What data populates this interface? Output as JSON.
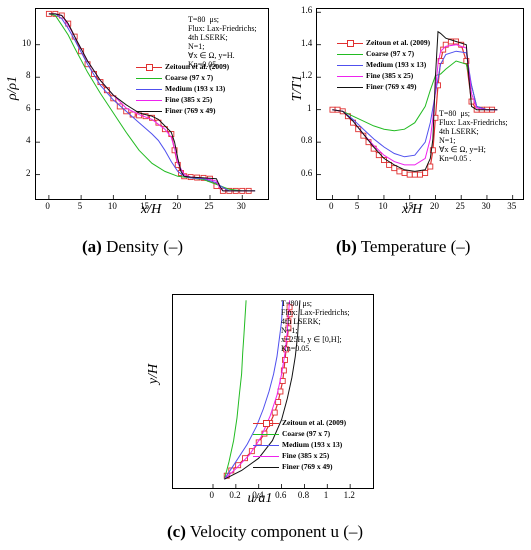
{
  "series_styles": [
    {
      "key": "zeitoun",
      "name": "Zeitoun et al. (2009)",
      "color": "#e03030",
      "marker": "square"
    },
    {
      "key": "coarse",
      "name": "Coarse (97 x 7)",
      "color": "#22bb22"
    },
    {
      "key": "medium",
      "name": "Medium (193 x 13)",
      "color": "#5050ee"
    },
    {
      "key": "fine",
      "name": "Fine (385 x 25)",
      "color": "#ee22ee"
    },
    {
      "key": "finer",
      "name": "Finer (769 x 49)",
      "color": "#111111"
    }
  ],
  "chart_data": [
    {
      "type": "line",
      "caption_label": "(a)",
      "caption_text": " Density (–)",
      "xlabel": "x/H",
      "ylabel": "ρ/ρ1",
      "xlim": [
        -2,
        34
      ],
      "ylim": [
        0.5,
        12.2
      ],
      "xticks": [
        0,
        5,
        10,
        15,
        20,
        25,
        30
      ],
      "yticks": [
        2,
        4,
        6,
        8,
        10
      ],
      "info": "T=80  μs;\nFlux: Lax-Friedrichs;\n4th LSERK;\nN=1;\n∀x ∈ Ω, y=H.\nKn=0.05",
      "series": [
        {
          "key": "zeitoun",
          "x": [
            0,
            1,
            2,
            3,
            4,
            5,
            6,
            7,
            8,
            9,
            10,
            11,
            12,
            13,
            14,
            15,
            16,
            17,
            18,
            19,
            19.5,
            20,
            20.5,
            21,
            22,
            23,
            24,
            25,
            26,
            27,
            28,
            29,
            30,
            31
          ],
          "y": [
            11.9,
            11.9,
            11.8,
            11.3,
            10.5,
            9.6,
            8.8,
            8.2,
            7.7,
            7.2,
            6.7,
            6.2,
            5.9,
            5.7,
            5.65,
            5.6,
            5.5,
            5.2,
            4.8,
            4.5,
            3.5,
            2.6,
            2.1,
            1.9,
            1.85,
            1.82,
            1.8,
            1.75,
            1.3,
            1.0,
            1.0,
            1.0,
            1.0,
            1.0
          ]
        },
        {
          "key": "coarse",
          "x": [
            0,
            1,
            2,
            3,
            4,
            6,
            8,
            10,
            12,
            14,
            16,
            18,
            20,
            22,
            24,
            26,
            28,
            30,
            32
          ],
          "y": [
            11.9,
            11.8,
            11.2,
            10.6,
            9.8,
            8.3,
            7.0,
            5.8,
            4.6,
            3.5,
            2.7,
            2.2,
            1.9,
            1.8,
            1.7,
            1.4,
            1.1,
            1.0,
            1.0
          ]
        },
        {
          "key": "medium",
          "x": [
            0,
            1,
            2,
            3,
            4,
            6,
            8,
            10,
            12,
            14,
            16,
            17,
            18,
            19,
            20,
            21,
            22,
            24,
            26,
            27,
            28,
            30,
            32
          ],
          "y": [
            11.9,
            11.9,
            11.6,
            11.0,
            10.3,
            8.8,
            7.5,
            6.6,
            5.9,
            5.2,
            4.5,
            4.1,
            3.5,
            2.8,
            2.2,
            1.9,
            1.8,
            1.75,
            1.5,
            1.2,
            1.0,
            1.0,
            1.0
          ]
        },
        {
          "key": "fine",
          "x": [
            0,
            1,
            2,
            3,
            4,
            6,
            8,
            10,
            12,
            14,
            16,
            17,
            18,
            19,
            19.5,
            20,
            21,
            22,
            24,
            26,
            26.5,
            27,
            28,
            30,
            32
          ],
          "y": [
            11.9,
            11.9,
            11.8,
            11.2,
            10.5,
            9.0,
            7.8,
            6.9,
            6.1,
            5.7,
            5.4,
            5.1,
            4.8,
            4.3,
            3.6,
            2.7,
            2.0,
            1.85,
            1.8,
            1.6,
            1.2,
            1.0,
            1.0,
            1.0,
            1.0
          ]
        },
        {
          "key": "finer",
          "x": [
            0,
            1,
            2,
            3,
            4,
            6,
            8,
            10,
            12,
            14,
            15,
            16,
            17,
            18,
            19,
            19.5,
            20,
            20.5,
            21,
            22,
            24,
            26,
            26.5,
            27,
            28,
            30,
            32
          ],
          "y": [
            11.9,
            11.9,
            11.8,
            11.3,
            10.5,
            9.0,
            7.8,
            6.9,
            6.3,
            5.8,
            5.7,
            5.6,
            5.4,
            5.0,
            4.6,
            4.0,
            3.0,
            2.2,
            1.9,
            1.85,
            1.8,
            1.75,
            1.3,
            1.0,
            1.0,
            1.0,
            1.0
          ]
        }
      ]
    },
    {
      "type": "line",
      "caption_label": "(b)",
      "caption_text": " Temperature (–)",
      "xlabel": "x/H",
      "ylabel": "T/T1",
      "xlim": [
        -3,
        37
      ],
      "ylim": [
        0.45,
        1.62
      ],
      "xticks": [
        0,
        5,
        10,
        15,
        20,
        25,
        30,
        35
      ],
      "yticks": [
        0.6,
        0.8,
        1,
        1.2,
        1.4,
        1.6
      ],
      "info": "T=80  μs;\nFlux: Lax-Friedrichs;\n4th LSERK;\nN=1;\n∀x ∈ Ω, y=H;\nKn=0.05 .",
      "series": [
        {
          "key": "zeitoun",
          "x": [
            0,
            1,
            2,
            3,
            4,
            5,
            6,
            7,
            8,
            9,
            10,
            11,
            12,
            13,
            14,
            15,
            16,
            17,
            18,
            19,
            19.5,
            20,
            20.5,
            21,
            21.5,
            22,
            23,
            24,
            25,
            26,
            27,
            28,
            29,
            30,
            31
          ],
          "y": [
            1.0,
            1.0,
            0.99,
            0.96,
            0.92,
            0.88,
            0.84,
            0.8,
            0.76,
            0.72,
            0.69,
            0.66,
            0.64,
            0.62,
            0.61,
            0.6,
            0.6,
            0.6,
            0.61,
            0.65,
            0.75,
            0.95,
            1.15,
            1.3,
            1.37,
            1.4,
            1.42,
            1.42,
            1.4,
            1.3,
            1.05,
            1.0,
            1.0,
            1.0,
            1.0
          ]
        },
        {
          "key": "coarse",
          "x": [
            0,
            2,
            4,
            6,
            8,
            10,
            12,
            14,
            16,
            18,
            19,
            20,
            21,
            22,
            24,
            26,
            27,
            28,
            30,
            32
          ],
          "y": [
            1.0,
            0.99,
            0.96,
            0.93,
            0.9,
            0.88,
            0.87,
            0.88,
            0.92,
            1.02,
            1.12,
            1.21,
            1.22,
            1.25,
            1.3,
            1.28,
            1.15,
            1.02,
            1.0,
            1.0
          ]
        },
        {
          "key": "medium",
          "x": [
            0,
            2,
            4,
            6,
            8,
            10,
            12,
            14,
            16,
            18,
            19,
            20,
            21,
            22,
            24,
            26,
            27,
            28,
            30,
            32
          ],
          "y": [
            1.0,
            0.99,
            0.94,
            0.88,
            0.82,
            0.77,
            0.73,
            0.71,
            0.72,
            0.8,
            0.92,
            1.1,
            1.28,
            1.34,
            1.36,
            1.35,
            1.15,
            1.02,
            1.0,
            1.0
          ]
        },
        {
          "key": "fine",
          "x": [
            0,
            2,
            4,
            6,
            8,
            10,
            12,
            14,
            16,
            18,
            19,
            19.5,
            20,
            20.5,
            21,
            22,
            24,
            26,
            27,
            28,
            30,
            32
          ],
          "y": [
            1.0,
            0.99,
            0.93,
            0.85,
            0.78,
            0.72,
            0.68,
            0.66,
            0.66,
            0.7,
            0.82,
            0.95,
            1.12,
            1.28,
            1.36,
            1.39,
            1.4,
            1.38,
            1.1,
            1.01,
            1.0,
            1.0
          ]
        },
        {
          "key": "finer",
          "x": [
            0,
            2,
            4,
            6,
            8,
            10,
            12,
            14,
            16,
            18,
            19,
            19.5,
            20,
            20.5,
            21,
            22,
            24,
            26,
            26.5,
            27,
            28,
            30,
            32
          ],
          "y": [
            1.0,
            0.99,
            0.93,
            0.85,
            0.77,
            0.7,
            0.66,
            0.63,
            0.62,
            0.63,
            0.7,
            0.82,
            1.2,
            1.48,
            1.47,
            1.44,
            1.42,
            1.4,
            1.2,
            1.02,
            1.0,
            1.0,
            1.0
          ]
        }
      ]
    },
    {
      "type": "line",
      "caption_label": "(c)",
      "caption_text": " Velocity component u (–)",
      "xlabel": "u/a1",
      "ylabel": "y/H",
      "xlim": [
        -0.35,
        1.4
      ],
      "ylim": [
        -0.05,
        1.05
      ],
      "xticks": [
        0,
        0.2,
        0.4,
        0.6,
        0.8,
        1,
        1.2
      ],
      "yticks": [],
      "info": "T=80  μs;\nFlux: Lax-Friedrichs;\n4th LSERK;\nN=1;\nx=25H, y ∈ [0,H];\nKn=0.05.",
      "series": [
        {
          "key": "zeitoun",
          "x": [
            0.12,
            0.16,
            0.22,
            0.28,
            0.34,
            0.4,
            0.45,
            0.5,
            0.54,
            0.57,
            0.59,
            0.61,
            0.62,
            0.63,
            0.64,
            0.65,
            0.66,
            0.66,
            0.67,
            0.67
          ],
          "y": [
            0.02,
            0.05,
            0.08,
            0.12,
            0.16,
            0.21,
            0.26,
            0.32,
            0.38,
            0.44,
            0.5,
            0.56,
            0.62,
            0.68,
            0.74,
            0.8,
            0.86,
            0.9,
            0.94,
            0.98
          ]
        },
        {
          "key": "coarse",
          "x": [
            0.1,
            0.14,
            0.18,
            0.21,
            0.23,
            0.25,
            0.26,
            0.27,
            0.28,
            0.29
          ],
          "y": [
            0.0,
            0.1,
            0.22,
            0.35,
            0.48,
            0.6,
            0.72,
            0.82,
            0.92,
            1.02
          ]
        },
        {
          "key": "medium",
          "x": [
            0.1,
            0.2,
            0.3,
            0.38,
            0.44,
            0.49,
            0.53,
            0.56,
            0.58,
            0.6,
            0.61
          ],
          "y": [
            0.0,
            0.1,
            0.2,
            0.3,
            0.4,
            0.5,
            0.6,
            0.7,
            0.8,
            0.9,
            1.02
          ]
        },
        {
          "key": "fine",
          "x": [
            0.1,
            0.2,
            0.32,
            0.42,
            0.5,
            0.56,
            0.6,
            0.63,
            0.65,
            0.66,
            0.67
          ],
          "y": [
            0.0,
            0.06,
            0.14,
            0.24,
            0.36,
            0.48,
            0.6,
            0.72,
            0.84,
            0.94,
            1.02
          ]
        },
        {
          "key": "finer",
          "x": [
            0.1,
            0.25,
            0.4,
            0.52,
            0.6,
            0.65,
            0.69,
            0.72,
            0.74,
            0.75,
            0.76
          ],
          "y": [
            0.0,
            0.05,
            0.12,
            0.22,
            0.34,
            0.46,
            0.58,
            0.7,
            0.82,
            0.92,
            1.02
          ]
        }
      ]
    }
  ]
}
